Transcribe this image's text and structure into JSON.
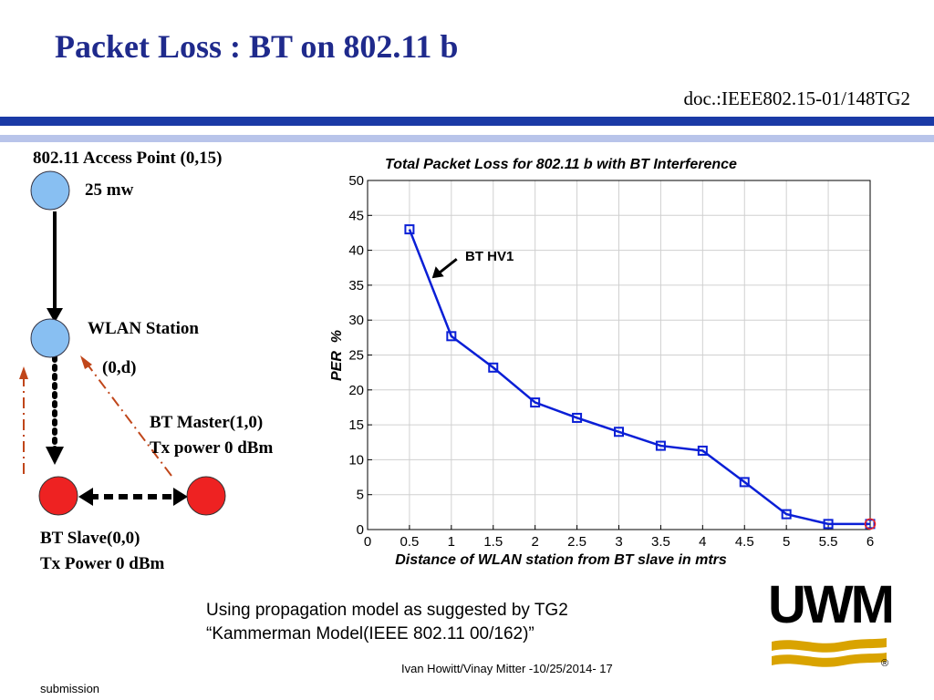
{
  "slide": {
    "title": "Packet Loss : BT on 802.11 b",
    "doc_id": "doc.:IEEE802.15-01/148TG2",
    "footer_credit": "Ivan Howitt/Vinay Mitter -10/25/2014- 17",
    "footer_left": "submission",
    "note_line1": "Using propagation model as suggested by TG2",
    "note_line2": "“Kammerman Model(IEEE 802.11 00/162)”",
    "logo_text": "UWM",
    "logo_reg": "®"
  },
  "diagram": {
    "ap_label": "802.11 Access Point (0,15)",
    "ap_power": "25 mw",
    "station_label": "WLAN Station",
    "station_coord": "(0,d)",
    "master_label": "BT Master(1,0)",
    "master_power": "Tx power 0 dBm",
    "slave_label": "BT Slave(0,0)",
    "slave_power": "Tx Power 0 dBm",
    "colors": {
      "wlan": "#88bff2",
      "bt": "#ee2222",
      "arrow_dashed": "#c0461a"
    }
  },
  "chart_data": {
    "type": "line",
    "title": "Total Packet Loss for 802.11 b with BT Interference",
    "xlabel": "Distance of WLAN station from BT slave in mtrs",
    "ylabel": "PER  %",
    "xlim": [
      0,
      6
    ],
    "ylim": [
      0,
      50
    ],
    "x_ticks": [
      "0",
      "0.5",
      "1",
      "1.5",
      "2",
      "2.5",
      "3",
      "3.5",
      "4",
      "4.5",
      "5",
      "5.5",
      "6"
    ],
    "y_ticks": [
      "0",
      "5",
      "10",
      "15",
      "20",
      "25",
      "30",
      "35",
      "40",
      "45",
      "50"
    ],
    "grid": true,
    "annotation": "BT HV1",
    "series": [
      {
        "color": "#0a1fd6",
        "marker": "square",
        "x": [
          0.5,
          1,
          1.5,
          2,
          2.5,
          3,
          3.5,
          4,
          4.5,
          5,
          5.5,
          6
        ],
        "y": [
          43,
          27.7,
          23.2,
          18.2,
          16,
          14,
          12,
          11.3,
          6.8,
          2.2,
          0.8,
          0.8
        ]
      }
    ]
  }
}
